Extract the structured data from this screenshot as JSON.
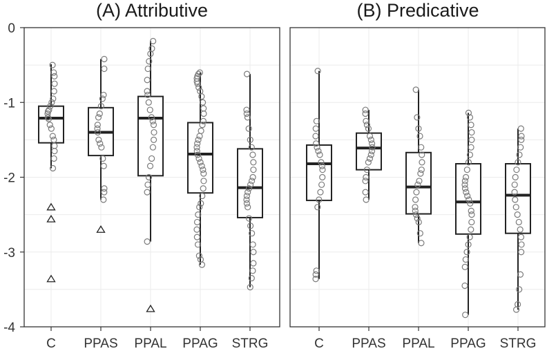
{
  "chart_data": {
    "type": "box",
    "ylim": [
      -4,
      0
    ],
    "yticks": [
      0,
      -1,
      -2,
      -3,
      -4
    ],
    "ytick_labels": [
      "0",
      "-1",
      "-2",
      "-3",
      "-4"
    ],
    "categories": [
      "C",
      "PPAS",
      "PPAL",
      "PPAG",
      "STRG"
    ],
    "grid": true,
    "panels": [
      {
        "title": "(A) Attributive",
        "boxes": [
          {
            "category": "C",
            "whisker_low": -1.88,
            "q1": -1.54,
            "median": -1.21,
            "q3": -1.05,
            "whisker_high": -0.49,
            "outliers": [
              -2.4,
              -2.56,
              -3.36
            ],
            "points": [
              -0.5,
              -0.6,
              -0.65,
              -0.75,
              -0.85,
              -0.95,
              -1.0,
              -1.05,
              -1.1,
              -1.12,
              -1.15,
              -1.2,
              -1.22,
              -1.3,
              -1.35,
              -1.45,
              -1.5,
              -1.58,
              -1.65,
              -1.75,
              -1.88
            ]
          },
          {
            "category": "PPAS",
            "whisker_low": -2.3,
            "q1": -1.71,
            "median": -1.4,
            "q3": -1.07,
            "whisker_high": -0.42,
            "outliers": [
              -2.7
            ],
            "points": [
              -0.42,
              -0.55,
              -0.9,
              -0.95,
              -1.05,
              -1.15,
              -1.2,
              -1.3,
              -1.35,
              -1.4,
              -1.5,
              -1.55,
              -1.6,
              -1.75,
              -1.85,
              -2.15,
              -2.2,
              -2.3
            ]
          },
          {
            "category": "PPAL",
            "whisker_low": -2.86,
            "q1": -1.98,
            "median": -1.21,
            "q3": -0.92,
            "whisker_high": -0.18,
            "outliers": [
              -3.76
            ],
            "points": [
              -0.18,
              -0.28,
              -0.35,
              -0.45,
              -0.55,
              -0.7,
              -0.85,
              -0.9,
              -1.0,
              -1.1,
              -1.2,
              -1.25,
              -1.3,
              -1.4,
              -1.5,
              -1.6,
              -1.75,
              -1.85,
              -2.0,
              -2.1,
              -2.2,
              -2.86
            ]
          },
          {
            "category": "PPAG",
            "whisker_low": -3.17,
            "q1": -2.21,
            "median": -1.69,
            "q3": -1.27,
            "whisker_high": -0.6,
            "outliers": [],
            "points": [
              -0.6,
              -0.62,
              -0.65,
              -0.68,
              -0.72,
              -0.75,
              -0.8,
              -0.85,
              -0.92,
              -1.0,
              -1.08,
              -1.15,
              -1.25,
              -1.3,
              -1.38,
              -1.45,
              -1.5,
              -1.55,
              -1.6,
              -1.65,
              -1.7,
              -1.75,
              -1.8,
              -1.85,
              -1.9,
              -1.95,
              -2.05,
              -2.15,
              -2.25,
              -2.35,
              -2.4,
              -2.5,
              -2.6,
              -2.7,
              -2.8,
              -2.9,
              -3.05,
              -3.1,
              -3.17
            ]
          },
          {
            "category": "STRG",
            "whisker_low": -3.47,
            "q1": -2.54,
            "median": -2.14,
            "q3": -1.62,
            "whisker_high": -0.62,
            "outliers": [],
            "points": [
              -0.62,
              -1.1,
              -1.15,
              -1.2,
              -1.35,
              -1.5,
              -1.6,
              -1.7,
              -1.8,
              -1.9,
              -2.0,
              -2.05,
              -2.1,
              -2.15,
              -2.2,
              -2.25,
              -2.3,
              -2.35,
              -2.4,
              -2.55,
              -2.65,
              -2.75,
              -2.9,
              -3.0,
              -3.15,
              -3.25,
              -3.35,
              -3.47
            ]
          }
        ]
      },
      {
        "title": "(B) Predicative",
        "boxes": [
          {
            "category": "C",
            "whisker_low": -3.36,
            "q1": -2.31,
            "median": -1.82,
            "q3": -1.57,
            "whisker_high": -0.58,
            "outliers": [],
            "points": [
              -0.58,
              -1.25,
              -1.35,
              -1.45,
              -1.55,
              -1.6,
              -1.65,
              -1.7,
              -1.8,
              -1.85,
              -1.9,
              -2.0,
              -2.1,
              -2.2,
              -2.3,
              -2.4,
              -3.25,
              -3.3,
              -3.36
            ]
          },
          {
            "category": "PPAS",
            "whisker_low": -2.3,
            "q1": -1.9,
            "median": -1.61,
            "q3": -1.41,
            "whisker_high": -1.1,
            "outliers": [],
            "points": [
              -1.1,
              -1.15,
              -1.25,
              -1.3,
              -1.35,
              -1.45,
              -1.5,
              -1.55,
              -1.6,
              -1.65,
              -1.7,
              -1.75,
              -1.8,
              -1.9,
              -2.0,
              -2.05,
              -2.2,
              -2.3
            ]
          },
          {
            "category": "PPAL",
            "whisker_low": -2.88,
            "q1": -2.49,
            "median": -2.13,
            "q3": -1.67,
            "whisker_high": -0.83,
            "outliers": [],
            "points": [
              -0.83,
              -1.2,
              -1.35,
              -1.45,
              -1.6,
              -1.7,
              -1.8,
              -1.9,
              -1.95,
              -2.05,
              -2.1,
              -2.2,
              -2.3,
              -2.4,
              -2.45,
              -2.5,
              -2.55,
              -2.6,
              -2.75,
              -2.88
            ]
          },
          {
            "category": "PPAG",
            "whisker_low": -3.84,
            "q1": -2.76,
            "median": -2.33,
            "q3": -1.82,
            "whisker_high": -1.14,
            "outliers": [],
            "points": [
              -1.14,
              -1.2,
              -1.3,
              -1.4,
              -1.5,
              -1.6,
              -1.7,
              -1.8,
              -1.9,
              -2.0,
              -2.05,
              -2.1,
              -2.15,
              -2.2,
              -2.25,
              -2.3,
              -2.35,
              -2.45,
              -2.5,
              -2.6,
              -2.7,
              -2.8,
              -2.9,
              -3.0,
              -3.1,
              -3.2,
              -3.45,
              -3.84
            ]
          },
          {
            "category": "STRG",
            "whisker_low": -3.77,
            "q1": -2.75,
            "median": -2.24,
            "q3": -1.82,
            "whisker_high": -1.35,
            "outliers": [],
            "points": [
              -1.35,
              -1.45,
              -1.5,
              -1.6,
              -1.7,
              -1.8,
              -1.9,
              -2.0,
              -2.1,
              -2.2,
              -2.3,
              -2.4,
              -2.5,
              -2.6,
              -2.7,
              -2.8,
              -2.9,
              -3.0,
              -3.3,
              -3.5,
              -3.7,
              -3.77
            ]
          }
        ]
      }
    ]
  }
}
